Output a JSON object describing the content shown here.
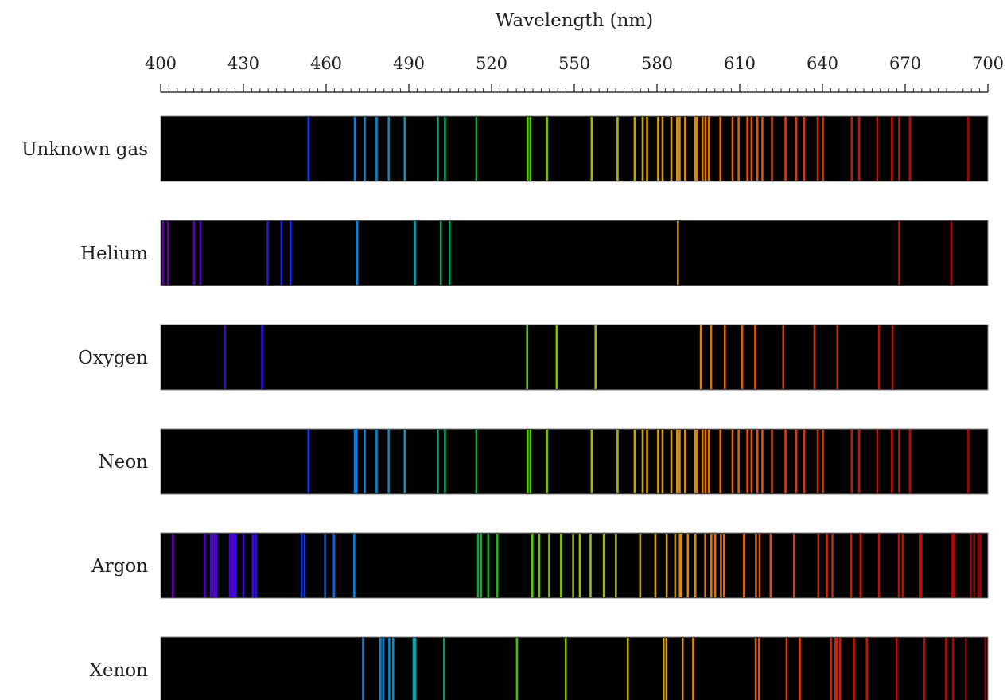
{
  "chart_data": {
    "type": "spectrum",
    "xlabel": "Wavelength (nm)",
    "xlim": [
      400,
      700
    ],
    "xticks": [
      400,
      430,
      460,
      490,
      520,
      550,
      580,
      610,
      640,
      670,
      700
    ],
    "minor_tick_step": 3,
    "background_color": "#000000",
    "series": [
      {
        "name": "Unknown gas",
        "lines": [
          453.6,
          470.4,
          474.0,
          478.3,
          482.7,
          488.5,
          500.5,
          503.1,
          514.5,
          533.1,
          534.1,
          540.1,
          556.3,
          565.7,
          571.9,
          574.8,
          576.4,
          580.4,
          582.0,
          585.2,
          587.3,
          588.2,
          590.2,
          593.9,
          594.5,
          596.5,
          597.6,
          598.8,
          603.0,
          607.4,
          609.6,
          612.8,
          614.3,
          616.4,
          618.2,
          621.7,
          626.6,
          630.5,
          633.4,
          638.3,
          640.2,
          650.6,
          653.3,
          659.9,
          665.2,
          667.8,
          671.7,
          692.9
        ]
      },
      {
        "name": "Helium",
        "lines": [
          400.9,
          402.6,
          412.1,
          414.4,
          438.8,
          443.8,
          447.1,
          471.3,
          492.2,
          501.6,
          504.8,
          587.6,
          667.8,
          686.7
        ]
      },
      {
        "name": "Oxygen",
        "lines": [
          423.3,
          436.8,
          532.9,
          543.6,
          557.7,
          595.9,
          599.6,
          604.6,
          610.9,
          615.6,
          625.8,
          637.1,
          645.4,
          660.5,
          665.4
        ]
      },
      {
        "name": "Neon",
        "lines": [
          453.6,
          470.4,
          471.0,
          474.0,
          478.3,
          482.7,
          488.5,
          500.5,
          503.1,
          514.5,
          533.1,
          534.1,
          540.1,
          556.3,
          565.7,
          571.9,
          574.8,
          576.4,
          580.4,
          582.0,
          585.2,
          587.3,
          588.2,
          590.2,
          593.9,
          594.5,
          596.5,
          597.6,
          598.8,
          603.0,
          607.4,
          609.6,
          612.8,
          614.3,
          616.4,
          618.2,
          621.7,
          626.6,
          630.5,
          633.4,
          638.3,
          640.2,
          650.6,
          653.3,
          659.9,
          665.2,
          667.8,
          671.7,
          692.9
        ]
      },
      {
        "name": "Argon",
        "lines": [
          404.4,
          415.9,
          418.2,
          419.1,
          419.8,
          420.1,
          425.1,
          425.9,
          426.6,
          427.2,
          430.0,
          433.4,
          434.5,
          451.1,
          452.2,
          459.6,
          462.8,
          470.2,
          515.1,
          516.2,
          518.8,
          522.1,
          534.8,
          537.3,
          540.9,
          545.2,
          549.6,
          552.0,
          555.9,
          560.7,
          565.1,
          573.9,
          579.4,
          583.5,
          586.6,
          588.3,
          588.9,
          591.2,
          593.9,
          597.5,
          599.7,
          601.1,
          603.2,
          604.3,
          611.5,
          615.9,
          617.2,
          621.2,
          629.7,
          638.5,
          641.6,
          643.6,
          650.4,
          653.8,
          660.5,
          667.7,
          669.1,
          675.3,
          675.9,
          687.1,
          687.7,
          693.8,
          695.0,
          696.5,
          697.3
        ]
      },
      {
        "name": "Xenon",
        "lines": [
          473.4,
          479.7,
          480.7,
          482.9,
          484.3,
          491.7,
          492.3,
          502.8,
          529.2,
          546.9,
          569.4,
          582.4,
          583.4,
          589.3,
          593.1,
          615.8,
          617.0,
          627.0,
          631.8,
          643.1,
          644.7,
          645.3,
          646.3,
          651.4,
          656.1,
          666.9,
          677.0,
          684.8,
          687.3,
          692.0,
          699.1
        ]
      }
    ]
  }
}
